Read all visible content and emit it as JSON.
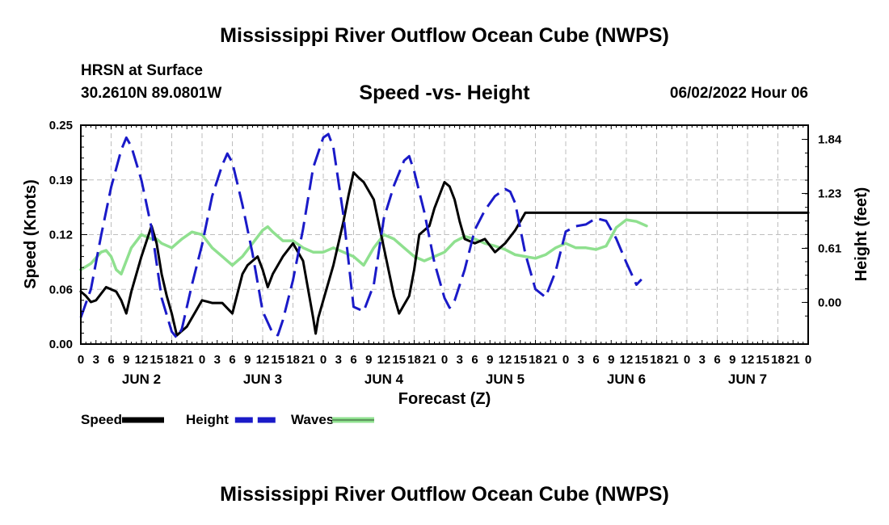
{
  "header": {
    "title": "Mississippi River Outflow Ocean Cube (NWPS)",
    "station": "HRSN at Surface",
    "coords": "30.2610N  89.0801W",
    "subtitle": "Speed -vs- Height",
    "datetime": "06/02/2022 Hour 06"
  },
  "footer": {
    "title": "Mississippi River Outflow Ocean Cube (NWPS)"
  },
  "chart_data": {
    "type": "line",
    "title": "Speed -vs- Height",
    "xlabel": "Forecast (Z)",
    "ylabel": "Speed (Knots)",
    "y2label": "Height (feet)",
    "xlim": [
      0,
      144
    ],
    "ylim": [
      0,
      0.25
    ],
    "y2lim": [
      -0.47,
      2.0
    ],
    "grid": true,
    "x_tick_labels": [
      "0",
      "3",
      "6",
      "9",
      "12",
      "15",
      "18",
      "21",
      "0",
      "3",
      "6",
      "9",
      "12",
      "15",
      "18",
      "21",
      "0",
      "3",
      "6",
      "9",
      "12",
      "15",
      "18",
      "21",
      "0",
      "3",
      "6",
      "9",
      "12",
      "15",
      "18",
      "21",
      "0",
      "3",
      "6",
      "9",
      "12",
      "15",
      "18",
      "21",
      "0",
      "3",
      "6",
      "9",
      "12",
      "15",
      "18",
      "21",
      "0"
    ],
    "day_labels": [
      {
        "label": "JUN 2",
        "x": 12
      },
      {
        "label": "JUN 3",
        "x": 36
      },
      {
        "label": "JUN 4",
        "x": 60
      },
      {
        "label": "JUN 5",
        "x": 84
      },
      {
        "label": "JUN 6",
        "x": 108
      },
      {
        "label": "JUN 7",
        "x": 132
      }
    ],
    "y_ticks": [
      "0.00",
      "0.06",
      "0.12",
      "0.19",
      "0.25"
    ],
    "y2_ticks": [
      "0.00",
      "0.61",
      "1.23",
      "1.84"
    ],
    "legend": [
      {
        "name": "Speed",
        "color": "#000000",
        "style": "solid"
      },
      {
        "name": "Height",
        "color": "#1a1ac8",
        "style": "dashed"
      },
      {
        "name": "Waves",
        "color": "#8fe08f",
        "style": "solid"
      }
    ],
    "series": [
      {
        "name": "Speed",
        "axis": "left",
        "color": "#000000",
        "points": [
          [
            0,
            0.06
          ],
          [
            1,
            0.055
          ],
          [
            2,
            0.048
          ],
          [
            3,
            0.05
          ],
          [
            5,
            0.065
          ],
          [
            7,
            0.06
          ],
          [
            8,
            0.05
          ],
          [
            9,
            0.035
          ],
          [
            10,
            0.06
          ],
          [
            12,
            0.1
          ],
          [
            14,
            0.135
          ],
          [
            15,
            0.115
          ],
          [
            16,
            0.08
          ],
          [
            17,
            0.055
          ],
          [
            18,
            0.035
          ],
          [
            19,
            0.01
          ],
          [
            20,
            0.015
          ],
          [
            21,
            0.02
          ],
          [
            22,
            0.03
          ],
          [
            23,
            0.04
          ],
          [
            24,
            0.05
          ],
          [
            26,
            0.047
          ],
          [
            28,
            0.047
          ],
          [
            30,
            0.035
          ],
          [
            32,
            0.08
          ],
          [
            33,
            0.09
          ],
          [
            34,
            0.095
          ],
          [
            35,
            0.1
          ],
          [
            36,
            0.085
          ],
          [
            37,
            0.065
          ],
          [
            38,
            0.08
          ],
          [
            40,
            0.1
          ],
          [
            42,
            0.115
          ],
          [
            44,
            0.095
          ],
          [
            46,
            0.03
          ],
          [
            46.5,
            0.012
          ],
          [
            47,
            0.03
          ],
          [
            48,
            0.05
          ],
          [
            50,
            0.09
          ],
          [
            52,
            0.14
          ],
          [
            53,
            0.17
          ],
          [
            54,
            0.196
          ],
          [
            55,
            0.19
          ],
          [
            56,
            0.185
          ],
          [
            58,
            0.165
          ],
          [
            60,
            0.11
          ],
          [
            62,
            0.055
          ],
          [
            63,
            0.035
          ],
          [
            64,
            0.045
          ],
          [
            65,
            0.055
          ],
          [
            66,
            0.085
          ],
          [
            67,
            0.125
          ],
          [
            68,
            0.13
          ],
          [
            69,
            0.135
          ],
          [
            70,
            0.155
          ],
          [
            72,
            0.185
          ],
          [
            73,
            0.18
          ],
          [
            74,
            0.165
          ],
          [
            75,
            0.14
          ],
          [
            76,
            0.12
          ],
          [
            78,
            0.115
          ],
          [
            80,
            0.12
          ],
          [
            82,
            0.105
          ],
          [
            84,
            0.115
          ],
          [
            86,
            0.13
          ],
          [
            88,
            0.15
          ],
          [
            144,
            0.15
          ]
        ]
      },
      {
        "name": "Height",
        "axis": "right",
        "color": "#1a1ac8",
        "points": [
          [
            0,
            -0.17
          ],
          [
            2,
            0.15
          ],
          [
            4,
            0.75
          ],
          [
            6,
            1.3
          ],
          [
            8,
            1.72
          ],
          [
            9,
            1.86
          ],
          [
            10,
            1.76
          ],
          [
            12,
            1.38
          ],
          [
            14,
            0.84
          ],
          [
            16,
            0.05
          ],
          [
            18,
            -0.33
          ],
          [
            19,
            -0.4
          ],
          [
            20,
            -0.3
          ],
          [
            22,
            0.2
          ],
          [
            24,
            0.65
          ],
          [
            26,
            1.2
          ],
          [
            28,
            1.55
          ],
          [
            29,
            1.68
          ],
          [
            30,
            1.58
          ],
          [
            32,
            1.1
          ],
          [
            34,
            0.55
          ],
          [
            36,
            -0.1
          ],
          [
            38,
            -0.35
          ],
          [
            39,
            -0.37
          ],
          [
            40,
            -0.2
          ],
          [
            42,
            0.25
          ],
          [
            44,
            0.83
          ],
          [
            46,
            1.52
          ],
          [
            48,
            1.86
          ],
          [
            49,
            1.9
          ],
          [
            50,
            1.75
          ],
          [
            52,
            0.98
          ],
          [
            54,
            -0.05
          ],
          [
            56,
            -0.1
          ],
          [
            58,
            0.2
          ],
          [
            60,
            0.95
          ],
          [
            62,
            1.32
          ],
          [
            64,
            1.6
          ],
          [
            65,
            1.65
          ],
          [
            66,
            1.48
          ],
          [
            68,
            1.02
          ],
          [
            70,
            0.45
          ],
          [
            72,
            0.05
          ],
          [
            73,
            -0.06
          ],
          [
            74,
            0.02
          ],
          [
            76,
            0.37
          ],
          [
            78,
            0.82
          ],
          [
            80,
            1.04
          ],
          [
            82,
            1.2
          ],
          [
            84,
            1.28
          ],
          [
            85,
            1.25
          ],
          [
            86,
            1.12
          ],
          [
            88,
            0.55
          ],
          [
            90,
            0.15
          ],
          [
            92,
            0.06
          ],
          [
            94,
            0.35
          ],
          [
            96,
            0.8
          ],
          [
            98,
            0.86
          ],
          [
            100,
            0.88
          ],
          [
            102,
            0.95
          ],
          [
            104,
            0.92
          ],
          [
            106,
            0.72
          ],
          [
            108,
            0.45
          ],
          [
            110,
            0.2
          ],
          [
            111,
            0.26
          ]
        ]
      },
      {
        "name": "Waves",
        "axis": "left",
        "color": "#8fe08f",
        "points": [
          [
            0,
            0.085
          ],
          [
            2,
            0.092
          ],
          [
            4,
            0.105
          ],
          [
            5,
            0.107
          ],
          [
            6,
            0.1
          ],
          [
            7,
            0.085
          ],
          [
            8,
            0.08
          ],
          [
            10,
            0.11
          ],
          [
            12,
            0.125
          ],
          [
            14,
            0.12
          ],
          [
            15,
            0.12
          ],
          [
            16,
            0.115
          ],
          [
            18,
            0.11
          ],
          [
            20,
            0.12
          ],
          [
            22,
            0.128
          ],
          [
            24,
            0.125
          ],
          [
            26,
            0.11
          ],
          [
            28,
            0.1
          ],
          [
            30,
            0.09
          ],
          [
            32,
            0.1
          ],
          [
            34,
            0.115
          ],
          [
            36,
            0.13
          ],
          [
            37,
            0.134
          ],
          [
            38,
            0.128
          ],
          [
            40,
            0.118
          ],
          [
            42,
            0.118
          ],
          [
            44,
            0.11
          ],
          [
            46,
            0.105
          ],
          [
            48,
            0.105
          ],
          [
            50,
            0.11
          ],
          [
            52,
            0.105
          ],
          [
            54,
            0.1
          ],
          [
            56,
            0.09
          ],
          [
            58,
            0.11
          ],
          [
            60,
            0.125
          ],
          [
            62,
            0.12
          ],
          [
            64,
            0.11
          ],
          [
            66,
            0.1
          ],
          [
            68,
            0.095
          ],
          [
            70,
            0.1
          ],
          [
            72,
            0.105
          ],
          [
            74,
            0.117
          ],
          [
            76,
            0.123
          ],
          [
            78,
            0.12
          ],
          [
            80,
            0.115
          ],
          [
            82,
            0.112
          ],
          [
            84,
            0.108
          ],
          [
            86,
            0.102
          ],
          [
            88,
            0.1
          ],
          [
            90,
            0.098
          ],
          [
            92,
            0.102
          ],
          [
            94,
            0.11
          ],
          [
            96,
            0.115
          ],
          [
            98,
            0.11
          ],
          [
            100,
            0.11
          ],
          [
            102,
            0.108
          ],
          [
            104,
            0.112
          ],
          [
            106,
            0.133
          ],
          [
            108,
            0.142
          ],
          [
            110,
            0.14
          ],
          [
            112,
            0.135
          ]
        ]
      }
    ]
  }
}
